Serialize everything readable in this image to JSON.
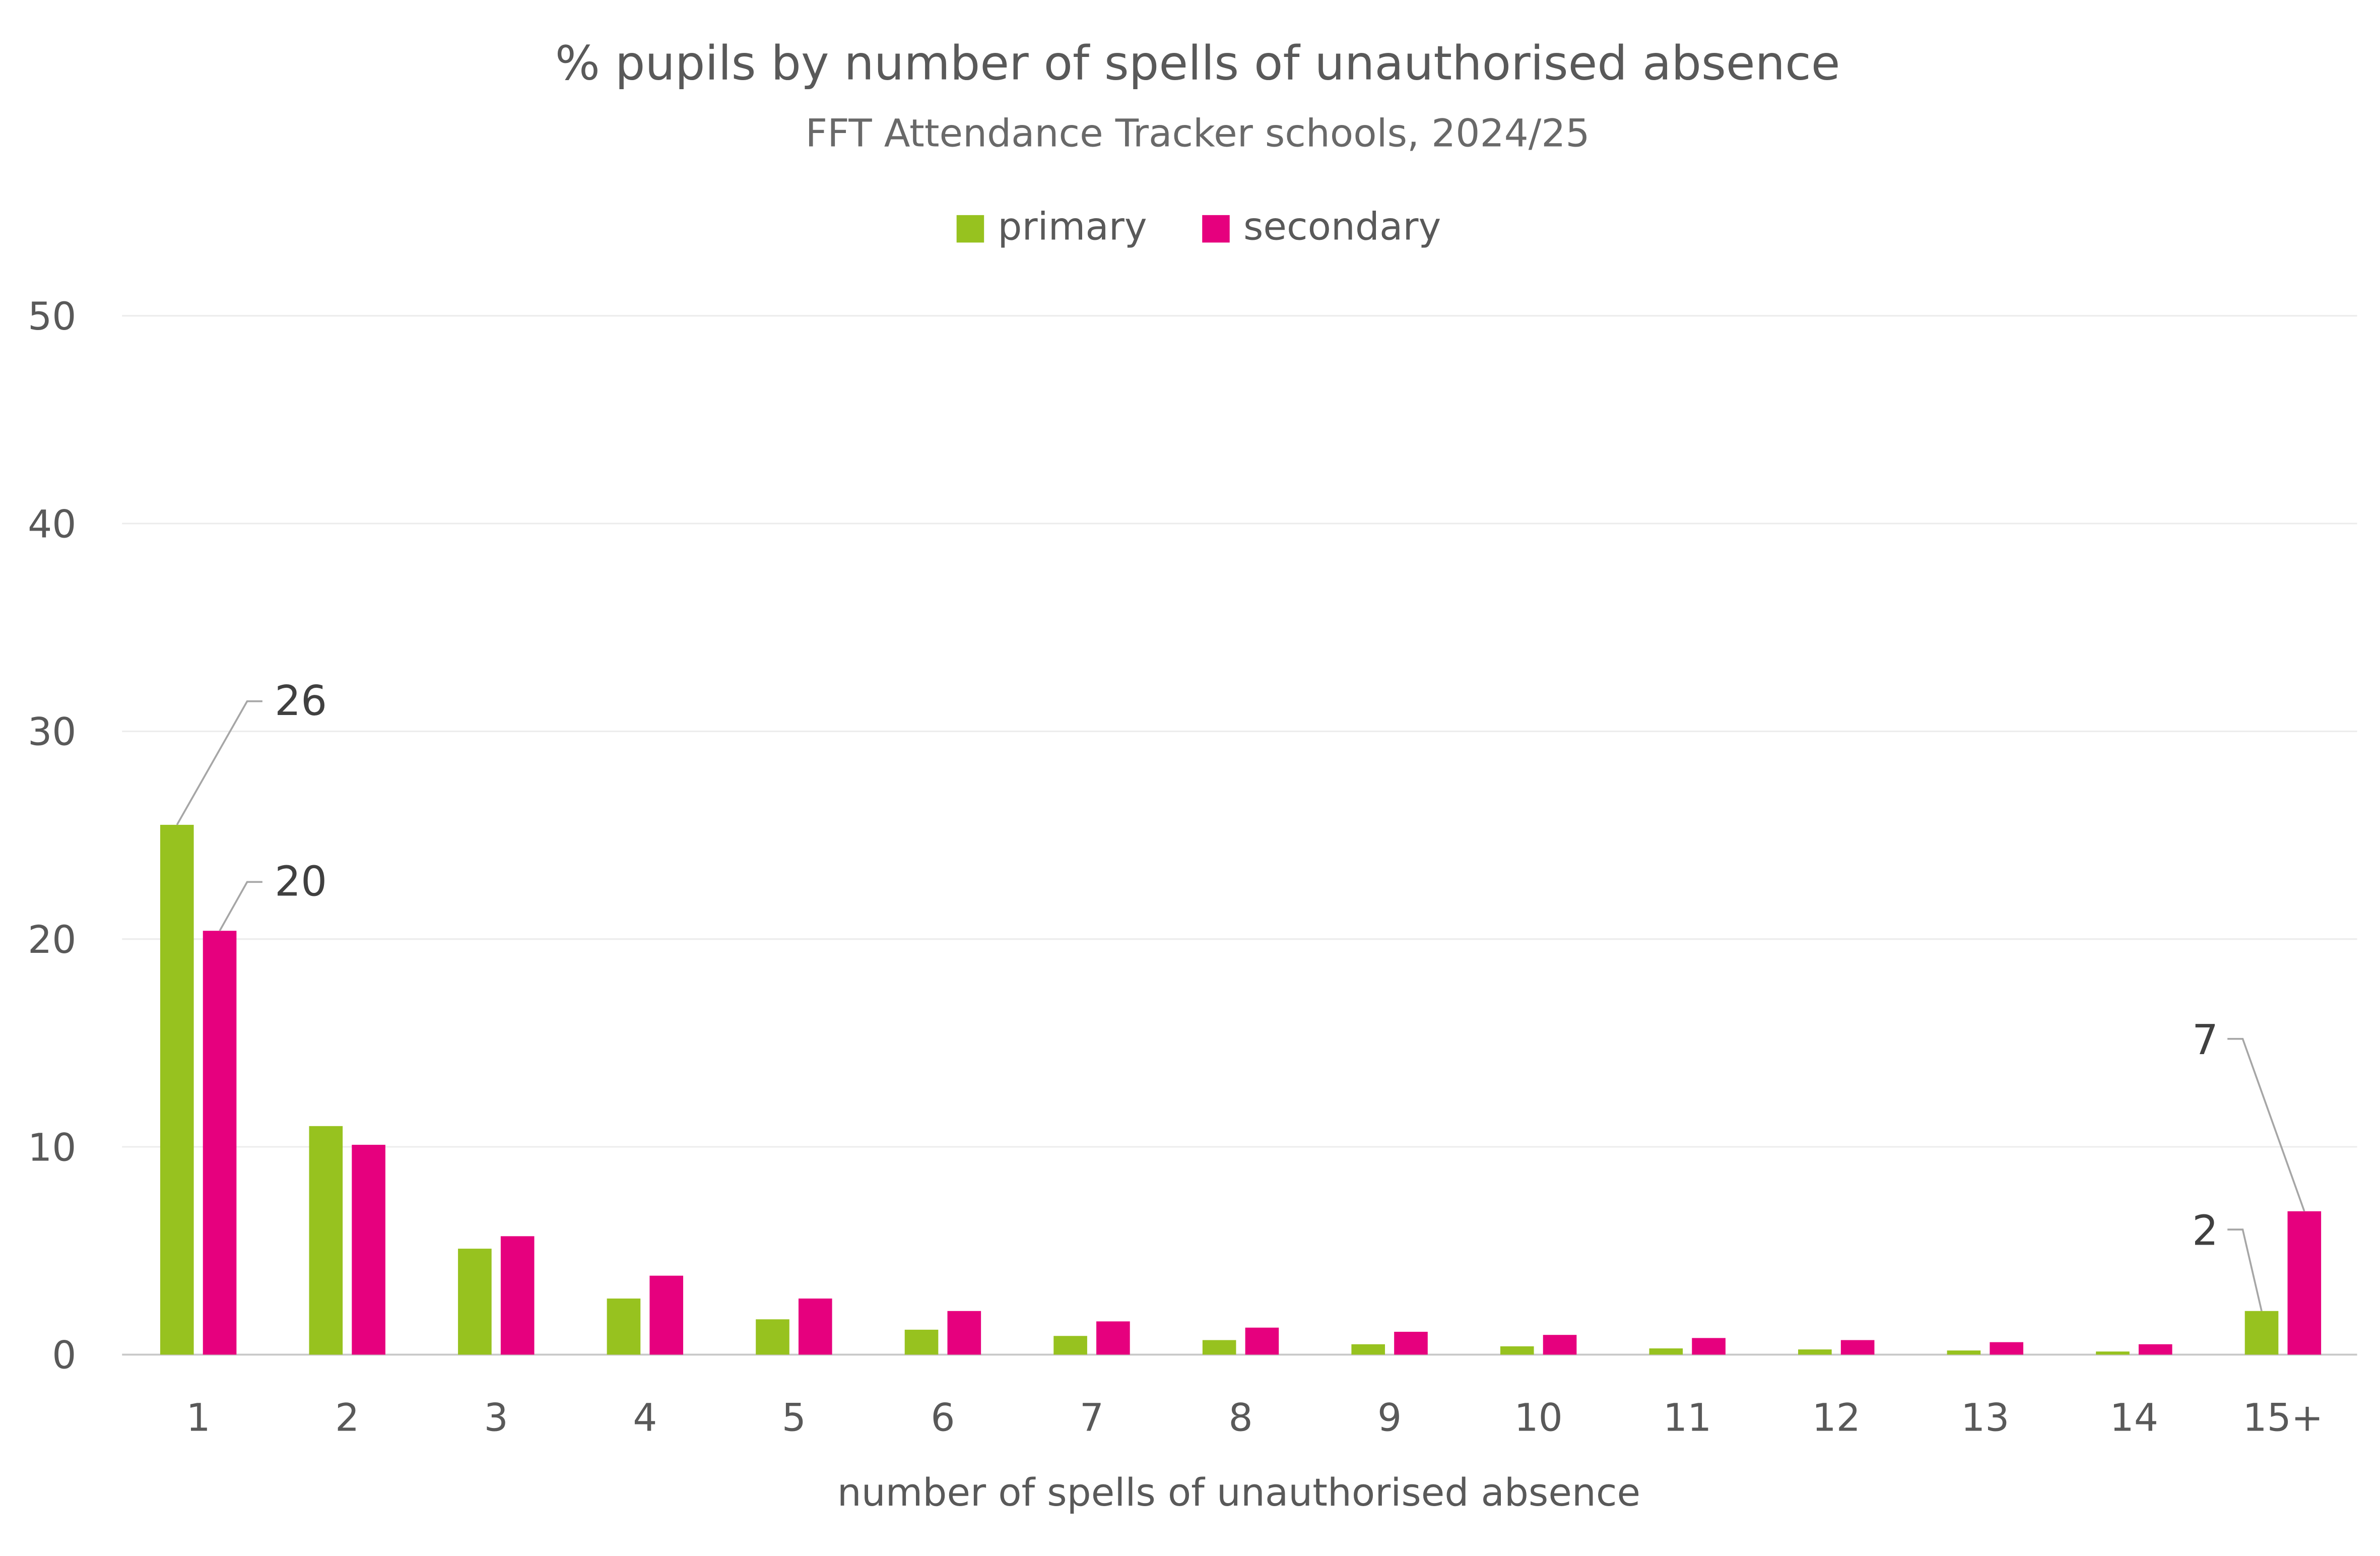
{
  "chart_data": {
    "type": "bar",
    "title": "% pupils by number of spells of unauthorised absence",
    "subtitle": "FFT Attendance Tracker schools, 2024/25",
    "xlabel": "number of spells of unauthorised absence",
    "ylabel": "",
    "ylim": [
      0,
      50
    ],
    "yticks": [
      0,
      10,
      20,
      30,
      40,
      50
    ],
    "grid": true,
    "legend": "top-center",
    "categories": [
      "1",
      "2",
      "3",
      "4",
      "5",
      "6",
      "7",
      "8",
      "9",
      "10",
      "11",
      "12",
      "13",
      "14",
      "15+"
    ],
    "series": [
      {
        "name": "primary",
        "color": "#97C21F",
        "values": [
          25.5,
          11.0,
          5.1,
          2.7,
          1.7,
          1.2,
          0.9,
          0.7,
          0.5,
          0.4,
          0.3,
          0.25,
          0.2,
          0.15,
          2.1
        ]
      },
      {
        "name": "secondary",
        "color": "#E6007E",
        "values": [
          20.4,
          10.1,
          5.7,
          3.8,
          2.7,
          2.1,
          1.6,
          1.3,
          1.1,
          0.95,
          0.8,
          0.7,
          0.6,
          0.5,
          6.9
        ]
      }
    ],
    "annotations": [
      {
        "series": 0,
        "category": "1",
        "text": "26"
      },
      {
        "series": 1,
        "category": "1",
        "text": "20"
      },
      {
        "series": 1,
        "category": "15+",
        "text": "7"
      },
      {
        "series": 0,
        "category": "15+",
        "text": "2"
      }
    ]
  }
}
